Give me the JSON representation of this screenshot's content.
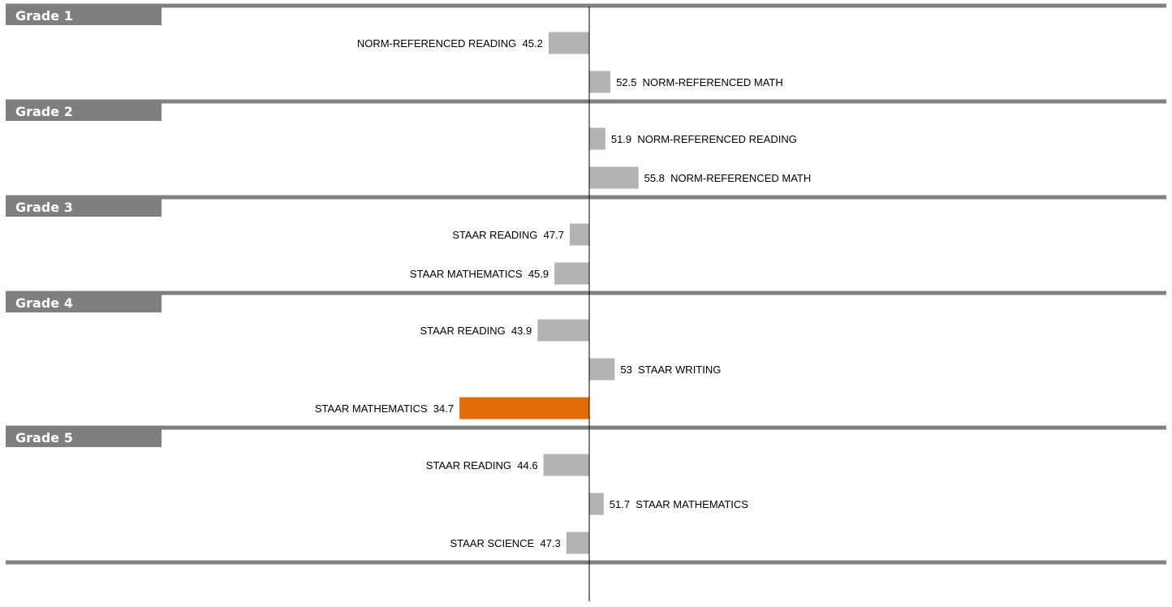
{
  "chart_data": {
    "type": "bar",
    "orientation": "horizontal",
    "baseline": 50,
    "highlight_color": "#e36c0a",
    "bar_color": "#b3b3b3",
    "separator_color": "#808080",
    "header_color": "#7f7f7f",
    "groups": [
      {
        "label": "Grade 1",
        "items": [
          {
            "name": "NORM-REFERENCED READING",
            "value": 45.2,
            "value_text": "45.2",
            "highlight": false
          },
          {
            "name": "NORM-REFERENCED MATH",
            "value": 52.5,
            "value_text": "52.5",
            "highlight": false
          }
        ]
      },
      {
        "label": "Grade 2",
        "items": [
          {
            "name": "NORM-REFERENCED READING",
            "value": 51.9,
            "value_text": "51.9",
            "highlight": false
          },
          {
            "name": "NORM-REFERENCED MATH",
            "value": 55.8,
            "value_text": "55.8",
            "highlight": false
          }
        ]
      },
      {
        "label": "Grade 3",
        "items": [
          {
            "name": "STAAR READING",
            "value": 47.7,
            "value_text": "47.7",
            "highlight": false
          },
          {
            "name": "STAAR MATHEMATICS",
            "value": 45.9,
            "value_text": "45.9",
            "highlight": false
          }
        ]
      },
      {
        "label": "Grade 4",
        "items": [
          {
            "name": "STAAR READING",
            "value": 43.9,
            "value_text": "43.9",
            "highlight": false
          },
          {
            "name": "STAAR WRITING",
            "value": 53,
            "value_text": "53",
            "highlight": false
          },
          {
            "name": "STAAR MATHEMATICS",
            "value": 34.7,
            "value_text": "34.7",
            "highlight": true
          }
        ]
      },
      {
        "label": "Grade 5",
        "items": [
          {
            "name": "STAAR READING",
            "value": 44.6,
            "value_text": "44.6",
            "highlight": false
          },
          {
            "name": "STAAR MATHEMATICS",
            "value": 51.7,
            "value_text": "51.7",
            "highlight": false
          },
          {
            "name": "STAAR SCIENCE",
            "value": 47.3,
            "value_text": "47.3",
            "highlight": false
          }
        ]
      }
    ]
  }
}
